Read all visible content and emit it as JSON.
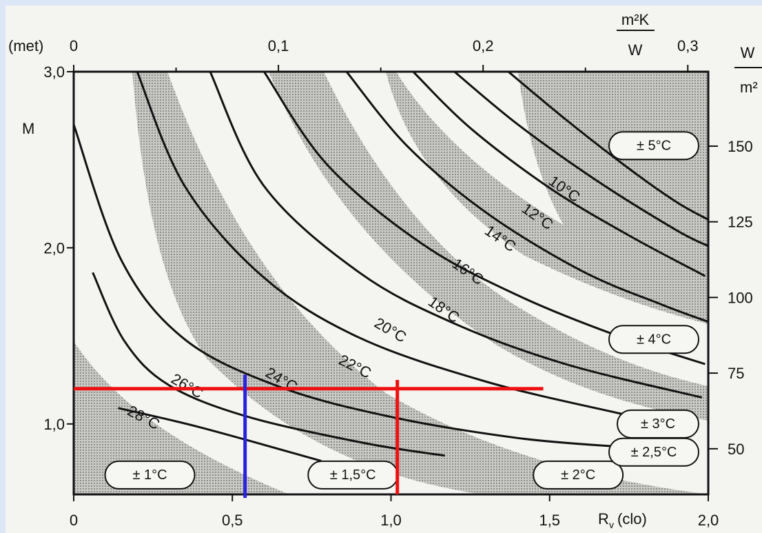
{
  "chart_data": {
    "type": "line",
    "x_bottom": {
      "label_main": "R",
      "label_sub": "v",
      "label_unit": "(clo)",
      "range": [
        0,
        2.0
      ],
      "ticks": [
        {
          "value": 0,
          "label": "0"
        },
        {
          "value": 0.5,
          "label": "0,5"
        },
        {
          "value": 1.0,
          "label": "1,0"
        },
        {
          "value": 1.5,
          "label": "1,5"
        },
        {
          "value": 2.0,
          "label": "2,0"
        }
      ]
    },
    "x_top": {
      "label_num": "m²K",
      "label_den": "W",
      "range": [
        0,
        0.31
      ],
      "ticks": [
        {
          "value": 0,
          "label": "0"
        },
        {
          "value": 0.1,
          "label": "0,1"
        },
        {
          "value": 0.2,
          "label": "0,2"
        },
        {
          "value": 0.3,
          "label": "0,3"
        }
      ],
      "minor": [
        0.05,
        0.15,
        0.25
      ]
    },
    "y_left": {
      "unit_label": "(met)",
      "label": "M",
      "range": [
        0.6,
        3.0
      ],
      "ticks": [
        {
          "value": 1.0,
          "label": "1,0"
        },
        {
          "value": 2.0,
          "label": "2,0"
        },
        {
          "value": 3.0,
          "label": "3,0"
        }
      ]
    },
    "y_right": {
      "label_num": "W",
      "label_den": "m²",
      "ticks": [
        {
          "value": 50,
          "label": "50"
        },
        {
          "value": 75,
          "label": "75"
        },
        {
          "value": 100,
          "label": "100"
        },
        {
          "value": 125,
          "label": "125"
        },
        {
          "value": 150,
          "label": "150"
        }
      ]
    },
    "series": [
      {
        "name": "28°C",
        "x": [
          0.14,
          0.4,
          0.78
        ],
        "y": [
          1.09,
          0.98,
          0.79
        ]
      },
      {
        "name": "26°C",
        "x": [
          0.06,
          0.16,
          0.3,
          0.55,
          0.92,
          1.17
        ],
        "y": [
          1.86,
          1.47,
          1.22,
          1.04,
          0.89,
          0.82
        ]
      },
      {
        "name": "24°C",
        "x": [
          0.0,
          0.15,
          0.35,
          0.65,
          1.0,
          1.4,
          1.72
        ],
        "y": [
          2.7,
          1.93,
          1.48,
          1.21,
          1.04,
          0.92,
          0.87
        ]
      },
      {
        "name": "22°C",
        "x": [
          0.2,
          0.35,
          0.6,
          0.9,
          1.3,
          1.72,
          1.96
        ],
        "y": [
          3.0,
          2.35,
          1.83,
          1.49,
          1.24,
          1.06,
          0.97
        ]
      },
      {
        "name": "20°C",
        "x": [
          0.43,
          0.6,
          0.9,
          1.2,
          1.55,
          1.98
        ],
        "y": [
          3.0,
          2.35,
          1.86,
          1.57,
          1.34,
          1.15
        ]
      },
      {
        "name": "18°C",
        "x": [
          0.6,
          0.8,
          1.1,
          1.4,
          1.7,
          1.99
        ],
        "y": [
          3.0,
          2.47,
          2.02,
          1.73,
          1.51,
          1.34
        ]
      },
      {
        "name": "16°C",
        "x": [
          0.86,
          1.05,
          1.3,
          1.6,
          1.85,
          2.0
        ],
        "y": [
          3.0,
          2.58,
          2.2,
          1.87,
          1.68,
          1.58
        ]
      },
      {
        "name": "14°C",
        "x": [
          1.07,
          1.25,
          1.5,
          1.75,
          1.99
        ],
        "y": [
          3.0,
          2.68,
          2.34,
          2.07,
          1.84
        ]
      },
      {
        "name": "12°C",
        "x": [
          1.2,
          1.4,
          1.65,
          1.9,
          2.0
        ],
        "y": [
          3.0,
          2.7,
          2.38,
          2.1,
          2.01
        ]
      },
      {
        "name": "10°C",
        "x": [
          1.37,
          1.55,
          1.75,
          1.9,
          2.0
        ],
        "y": [
          3.0,
          2.73,
          2.45,
          2.26,
          2.16
        ]
      }
    ],
    "bands": [
      {
        "label": "± 1°C",
        "x": 0.24,
        "y": 0.71
      },
      {
        "label": "± 1,5°C",
        "x": 0.88,
        "y": 0.71
      },
      {
        "label": "± 2°C",
        "x": 1.59,
        "y": 0.71
      },
      {
        "label": "± 2,5°C",
        "x": 1.96,
        "y": 0.84
      },
      {
        "label": "± 3°C",
        "x": 1.96,
        "y": 1.0
      },
      {
        "label": "± 4°C",
        "x": 1.96,
        "y": 1.48
      },
      {
        "label": "± 5°C",
        "x": 1.96,
        "y": 2.58
      }
    ],
    "markers": {
      "horizontal_red": {
        "y": 1.2,
        "x_from": 0.0,
        "x_to": 1.48,
        "color": "#ee1111"
      },
      "vertical_red": {
        "x": 1.02,
        "y_from": 0.6,
        "y_to": 1.25,
        "color": "#ee1111"
      },
      "vertical_blue": {
        "x": 0.54,
        "y_from": 0.58,
        "y_to": 1.28,
        "color": "#2a22dd"
      }
    }
  },
  "colors": {
    "ink": "#111111",
    "shade": "#b9b9b6",
    "paper": "#f4f4f1",
    "red": "#ee1111",
    "blue": "#2a22dd"
  }
}
